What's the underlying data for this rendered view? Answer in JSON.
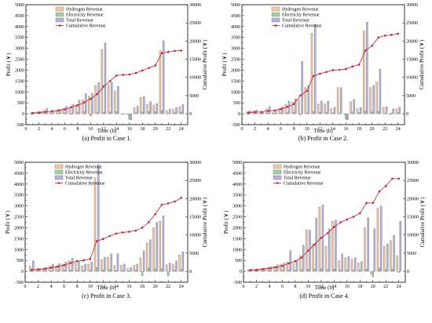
{
  "legend": {
    "hydrogen": "Hydrogen Revenue",
    "electricity": "Electricity Revenue",
    "total": "Total Revenue",
    "cumulative": "Cumulative Revenue"
  },
  "colors": {
    "hydrogen": "#f7c89b",
    "electricity": "#9dd3a0",
    "total": "#b7b3e0",
    "line": "#d01c2c"
  },
  "axes": {
    "xlabel": "Time (h)",
    "ylabel_left": "Profit (￥)",
    "ylabel_right": "Cumulative Profit (￥)"
  },
  "chart_data": [
    {
      "type": "bar",
      "caption": "(a) Profit in Case 1.",
      "x": [
        1,
        2,
        3,
        4,
        5,
        6,
        7,
        8,
        9,
        10,
        11,
        12,
        13,
        14,
        15,
        16,
        17,
        18,
        19,
        20,
        21,
        22,
        23,
        24
      ],
      "xlim": [
        0,
        25
      ],
      "ylim_left": [
        -500,
        5000
      ],
      "ylim_right": [
        -3000,
        30000
      ],
      "series": [
        {
          "name": "Hydrogen Revenue",
          "values": [
            40,
            80,
            160,
            60,
            130,
            230,
            280,
            420,
            630,
            800,
            1300,
            2950,
            1350,
            1050,
            0,
            -30,
            280,
            750,
            420,
            400,
            2900,
            150,
            200,
            320
          ]
        },
        {
          "name": "Electricity Revenue",
          "values": [
            -20,
            20,
            20,
            20,
            30,
            30,
            -30,
            50,
            100,
            -100,
            50,
            60,
            80,
            100,
            0,
            -250,
            50,
            80,
            100,
            100,
            150,
            20,
            50,
            80
          ]
        },
        {
          "name": "Total Revenue",
          "values": [
            60,
            110,
            230,
            90,
            200,
            340,
            420,
            620,
            920,
            940,
            1430,
            3250,
            1450,
            1250,
            0,
            -280,
            350,
            780,
            550,
            460,
            3350,
            220,
            280,
            420
          ]
        },
        {
          "name": "Cumulative Revenue",
          "values": [
            200,
            300,
            500,
            700,
            900,
            1200,
            1800,
            2300,
            3100,
            4100,
            5400,
            7500,
            9000,
            10500,
            10700,
            10800,
            11200,
            11900,
            12600,
            13300,
            16700,
            17000,
            17300,
            17400
          ]
        }
      ]
    },
    {
      "type": "bar",
      "caption": "(b) Profit in Case 2.",
      "x": [
        1,
        2,
        3,
        4,
        5,
        6,
        7,
        8,
        9,
        10,
        11,
        12,
        13,
        14,
        15,
        16,
        17,
        18,
        19,
        20,
        21,
        22,
        23,
        24
      ],
      "xlim": [
        0,
        25
      ],
      "ylim_left": [
        -500,
        5000
      ],
      "ylim_right": [
        -3000,
        30000
      ],
      "series": [
        {
          "name": "Hydrogen Revenue",
          "values": [
            80,
            130,
            30,
            230,
            50,
            230,
            420,
            520,
            630,
            1200,
            3700,
            450,
            450,
            230,
            1200,
            -20,
            550,
            230,
            3800,
            1200,
            1450,
            300,
            -30,
            220
          ]
        },
        {
          "name": "Electricity Revenue",
          "values": [
            -20,
            20,
            30,
            30,
            30,
            40,
            50,
            60,
            -50,
            40,
            100,
            60,
            60,
            40,
            20,
            -250,
            80,
            50,
            120,
            80,
            120,
            20,
            40,
            50
          ]
        },
        {
          "name": "Total Revenue",
          "values": [
            130,
            180,
            60,
            330,
            120,
            320,
            580,
            680,
            2400,
            1300,
            4100,
            580,
            580,
            300,
            1200,
            -280,
            650,
            280,
            4200,
            1300,
            2050,
            320,
            220,
            300
          ]
        },
        {
          "name": "Cumulative Revenue",
          "values": [
            300,
            450,
            500,
            800,
            900,
            1300,
            1900,
            2700,
            5000,
            6300,
            10400,
            11000,
            11500,
            12000,
            12100,
            12300,
            13000,
            13500,
            17400,
            18700,
            21000,
            21500,
            21700,
            22000
          ]
        }
      ]
    },
    {
      "type": "bar",
      "caption": "(c) Profit in Case 3.",
      "x": [
        1,
        2,
        3,
        4,
        5,
        6,
        7,
        8,
        9,
        10,
        11,
        12,
        13,
        14,
        15,
        16,
        17,
        18,
        19,
        20,
        21,
        22,
        23,
        24
      ],
      "xlim": [
        0,
        25
      ],
      "ylim_left": [
        -500,
        5000
      ],
      "ylim_right": [
        -3000,
        30000
      ],
      "series": [
        {
          "name": "Hydrogen Revenue",
          "values": [
            230,
            80,
            130,
            230,
            230,
            330,
            480,
            380,
            250,
            330,
            4300,
            530,
            650,
            270,
            280,
            120,
            280,
            620,
            1300,
            2000,
            2300,
            300,
            330,
            750
          ]
        },
        {
          "name": "Electricity Revenue",
          "values": [
            30,
            20,
            20,
            30,
            40,
            50,
            60,
            50,
            30,
            50,
            180,
            60,
            80,
            40,
            40,
            20,
            50,
            -200,
            150,
            100,
            120,
            -200,
            50,
            80
          ]
        },
        {
          "name": "Total Revenue",
          "values": [
            480,
            130,
            170,
            330,
            350,
            430,
            600,
            480,
            330,
            430,
            4900,
            650,
            800,
            800,
            330,
            180,
            330,
            950,
            1450,
            2250,
            2550,
            380,
            480,
            900
          ]
        },
        {
          "name": "Cumulative Revenue",
          "values": [
            400,
            550,
            700,
            1000,
            1300,
            1700,
            2300,
            2800,
            3000,
            3400,
            8300,
            8900,
            9700,
            10400,
            10700,
            10900,
            11200,
            12000,
            13500,
            15700,
            18300,
            18700,
            19200,
            20200
          ]
        }
      ]
    },
    {
      "type": "bar",
      "caption": "(d) Profit in Case 4.",
      "x": [
        1,
        2,
        3,
        4,
        5,
        6,
        7,
        8,
        9,
        10,
        11,
        12,
        13,
        14,
        15,
        16,
        17,
        18,
        19,
        20,
        21,
        22,
        23,
        24
      ],
      "xlim": [
        0,
        25
      ],
      "ylim_left": [
        -500,
        5000
      ],
      "ylim_right": [
        -3000,
        30000
      ],
      "series": [
        {
          "name": "Hydrogen Revenue",
          "values": [
            80,
            80,
            130,
            180,
            230,
            330,
            420,
            380,
            720,
            1900,
            1250,
            2950,
            1150,
            2300,
            480,
            620,
            550,
            380,
            2000,
            -130,
            2900,
            1150,
            1420,
            720
          ]
        },
        {
          "name": "Electricity Revenue",
          "values": [
            20,
            20,
            30,
            30,
            40,
            50,
            60,
            50,
            80,
            100,
            100,
            120,
            80,
            100,
            50,
            60,
            60,
            50,
            100,
            -250,
            150,
            80,
            100,
            -50
          ]
        },
        {
          "name": "Total Revenue",
          "values": [
            100,
            100,
            150,
            220,
            300,
            380,
            950,
            480,
            1200,
            1880,
            2450,
            3050,
            1950,
            2350,
            800,
            680,
            620,
            450,
            2450,
            1950,
            3000,
            1250,
            1650,
            2300
          ]
        },
        {
          "name": "Cumulative Revenue",
          "values": [
            300,
            400,
            600,
            800,
            1100,
            1500,
            2200,
            2800,
            3800,
            5700,
            7400,
            9200,
            10500,
            12200,
            13500,
            14300,
            15000,
            16000,
            18800,
            18800,
            22000,
            23500,
            25500,
            25500
          ]
        }
      ]
    }
  ]
}
